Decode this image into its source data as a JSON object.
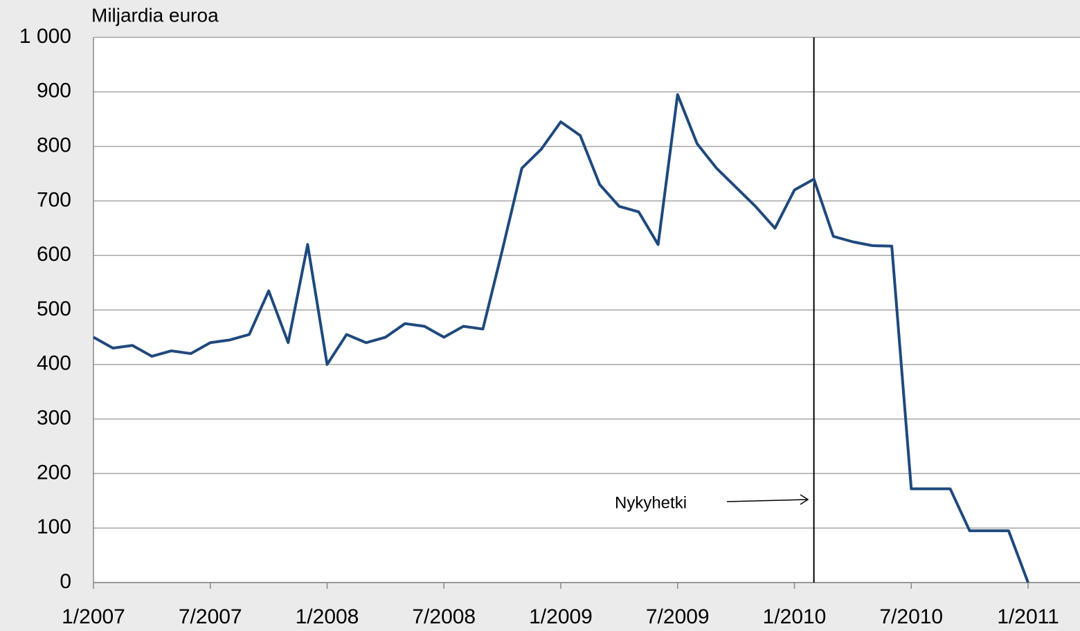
{
  "chart_data": {
    "type": "line",
    "title": "Miljardia euroa",
    "x": [
      "1/2007",
      "2/2007",
      "3/2007",
      "4/2007",
      "5/2007",
      "6/2007",
      "7/2007",
      "8/2007",
      "9/2007",
      "10/2007",
      "11/2007",
      "12/2007",
      "1/2008",
      "2/2008",
      "3/2008",
      "4/2008",
      "5/2008",
      "6/2008",
      "7/2008",
      "8/2008",
      "9/2008",
      "10/2008",
      "11/2008",
      "12/2008",
      "1/2009",
      "2/2009",
      "3/2009",
      "4/2009",
      "5/2009",
      "6/2009",
      "7/2009",
      "8/2009",
      "9/2009",
      "10/2009",
      "11/2009",
      "12/2009",
      "1/2010",
      "2/2010",
      "3/2010",
      "4/2010",
      "5/2010",
      "6/2010",
      "7/2010",
      "8/2010",
      "9/2010",
      "10/2010",
      "11/2010",
      "12/2010",
      "1/2011"
    ],
    "series": [
      {
        "color": "#1f497d",
        "values": [
          450,
          430,
          435,
          415,
          425,
          420,
          440,
          445,
          455,
          535,
          440,
          620,
          400,
          455,
          440,
          450,
          475,
          470,
          450,
          470,
          465,
          610,
          760,
          795,
          845,
          820,
          730,
          690,
          680,
          620,
          895,
          805,
          760,
          725,
          690,
          650,
          720,
          740,
          635,
          625,
          618,
          617,
          172,
          172,
          172,
          95,
          95,
          95,
          0
        ]
      }
    ],
    "xlim": [
      "1/2007",
      "1/2011"
    ],
    "xticks": [
      "1/2007",
      "7/2007",
      "1/2008",
      "7/2008",
      "1/2009",
      "7/2009",
      "1/2010",
      "7/2010",
      "1/2011"
    ],
    "ylim": [
      0,
      1000
    ],
    "yticks": [
      0,
      100,
      200,
      300,
      400,
      500,
      600,
      700,
      800,
      900,
      {
        "value": 1000,
        "label": "1 000"
      }
    ],
    "grid": true,
    "marker": {
      "x": "2/2010",
      "label": "Nykyhetki"
    }
  }
}
